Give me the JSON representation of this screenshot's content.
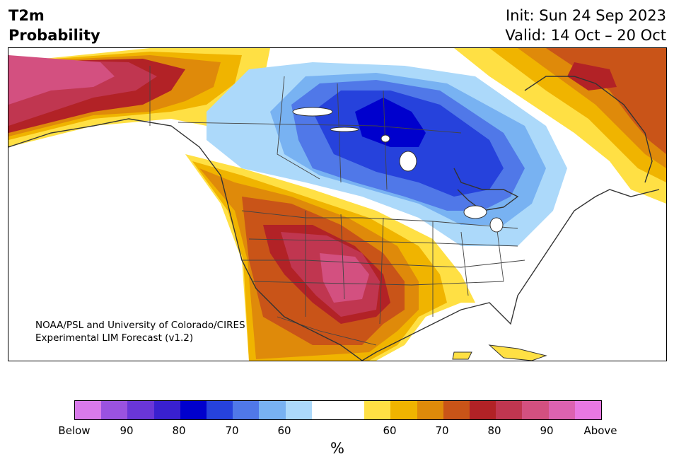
{
  "header": {
    "title_line1": "T2m",
    "title_line2": "Probability",
    "init": "Init: Sun 24 Sep 2023",
    "valid": "Valid: 14 Oct – 20 Oct"
  },
  "map": {
    "credit_line1": "NOAA/PSL and University of Colorado/CIRES",
    "credit_line2": "Experimental LIM Forecast (v1.2)",
    "colors": {
      "below_90": "#9a52e0",
      "below_80": "#3920d0",
      "below_70": "#0000cd",
      "below_65": "#2642dc",
      "below_60": "#5078e8",
      "below_55": "#78b2f2",
      "below_50": "#acd9fa",
      "neutral": "#ffffff",
      "above_50": "#ffe044",
      "above_55": "#f0b400",
      "above_60": "#df8a0a",
      "above_65": "#c95418",
      "above_70": "#b22226",
      "above_80": "#c03650",
      "above_90": "#d35080"
    }
  },
  "colorbar": {
    "colors": [
      "#d97aeb",
      "#9a52e0",
      "#6a36d8",
      "#3920d0",
      "#0000cd",
      "#2642dc",
      "#5078e8",
      "#78b2f2",
      "#acd9fa",
      "#ffffff",
      "#ffffff",
      "#ffe044",
      "#f0b400",
      "#df8a0a",
      "#c95418",
      "#b22226",
      "#c03650",
      "#d35080",
      "#dc62b0",
      "#e878e2"
    ],
    "tick_labels": [
      "Below",
      "90",
      "80",
      "70",
      "60",
      "60",
      "70",
      "80",
      "90",
      "Above"
    ],
    "unit": "%"
  }
}
